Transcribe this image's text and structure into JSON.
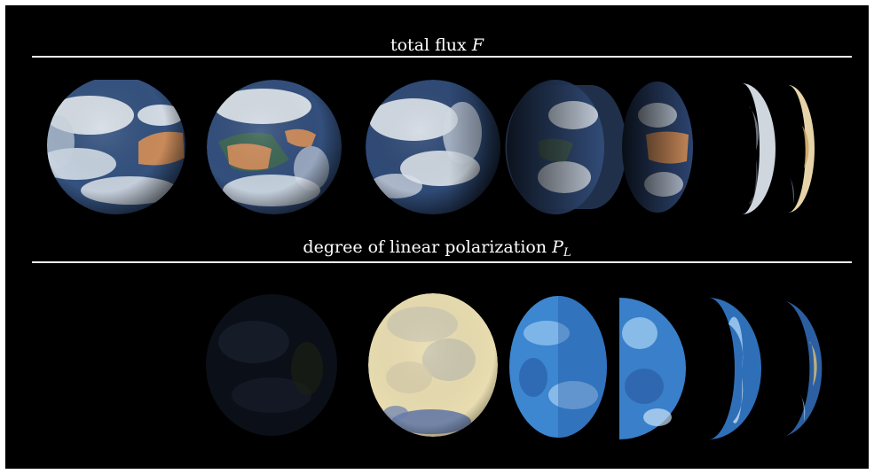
{
  "sections": {
    "flux": {
      "title": "total flux",
      "symbol": "F"
    },
    "polarization": {
      "title": "degree of linear polarization",
      "symbol": "P",
      "subscript": "L"
    }
  },
  "colors": {
    "background": "#000000",
    "rule": "#f2f2f2",
    "ocean": "#2e4a7a",
    "cloud": "#e8edf2",
    "desert": "#c98a5a",
    "pol_blue": "#3f8fd8",
    "pol_cream": "#e8dcb0"
  }
}
